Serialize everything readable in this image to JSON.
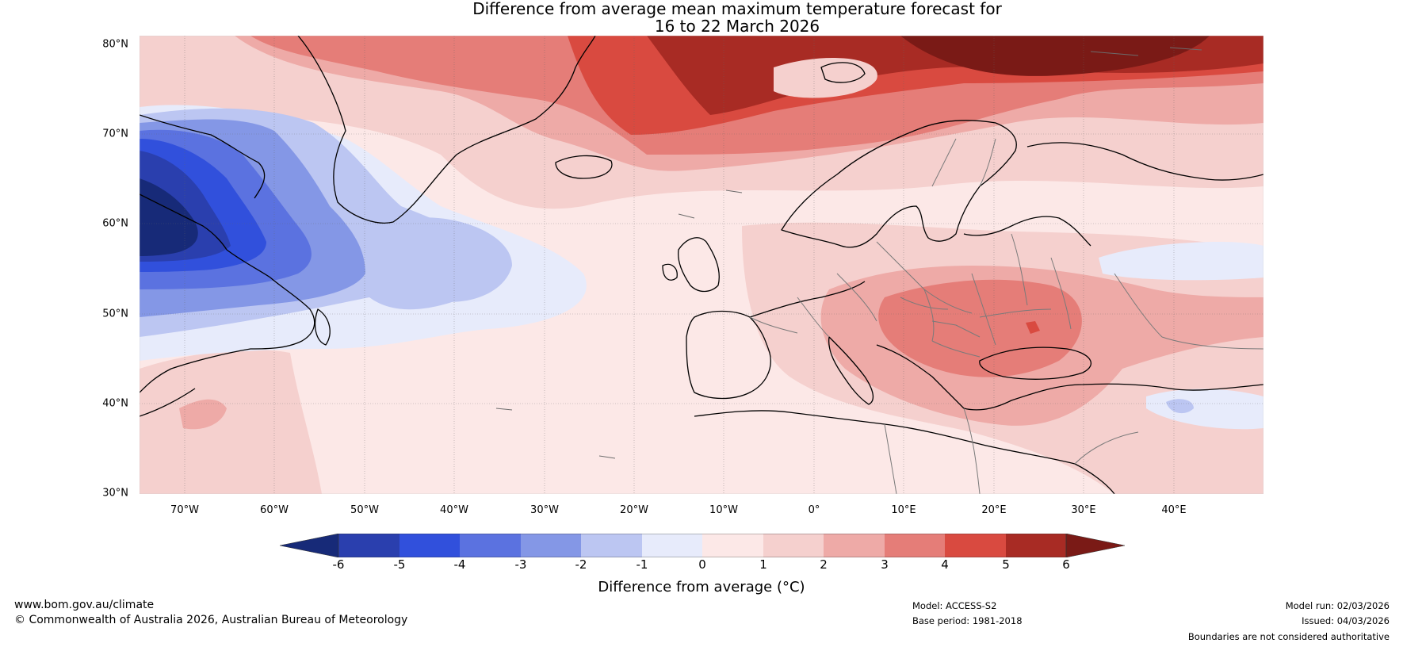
{
  "title": {
    "line1": "Difference from average mean maximum temperature forecast for",
    "line2": "16 to 22 March 2026"
  },
  "map": {
    "lat_labels": [
      "80°N",
      "70°N",
      "60°N",
      "50°N",
      "40°N",
      "30°N"
    ],
    "lon_labels": [
      "70°W",
      "60°W",
      "50°W",
      "40°W",
      "30°W",
      "20°W",
      "10°W",
      "0°",
      "10°E",
      "20°E",
      "30°E",
      "40°E"
    ]
  },
  "colorbar": {
    "ticks": [
      "-6",
      "-5",
      "-4",
      "-3",
      "-2",
      "-1",
      "0",
      "1",
      "2",
      "3",
      "4",
      "5",
      "6"
    ],
    "colors": [
      "#172a78",
      "#2a3fae",
      "#3150dc",
      "#5b72e0",
      "#8497e6",
      "#bcc6f2",
      "#e7ebfb",
      "#fce8e7",
      "#f5d0ce",
      "#eeaaa7",
      "#e57d78",
      "#d94a40",
      "#a82b24",
      "#7a1a16"
    ],
    "label": "Difference from average (°C)"
  },
  "footer": {
    "website": "www.bom.gov.au/climate",
    "copyright": "© Commonwealth of Australia 2026, Australian Bureau of Meteorology",
    "model": "Model: ACCESS-S2",
    "base_period": "Base period: 1981-2018",
    "model_run": "Model run: 02/03/2026",
    "issued": "Issued: 04/03/2026",
    "disclaimer": "Boundaries are not considered authoritative"
  }
}
